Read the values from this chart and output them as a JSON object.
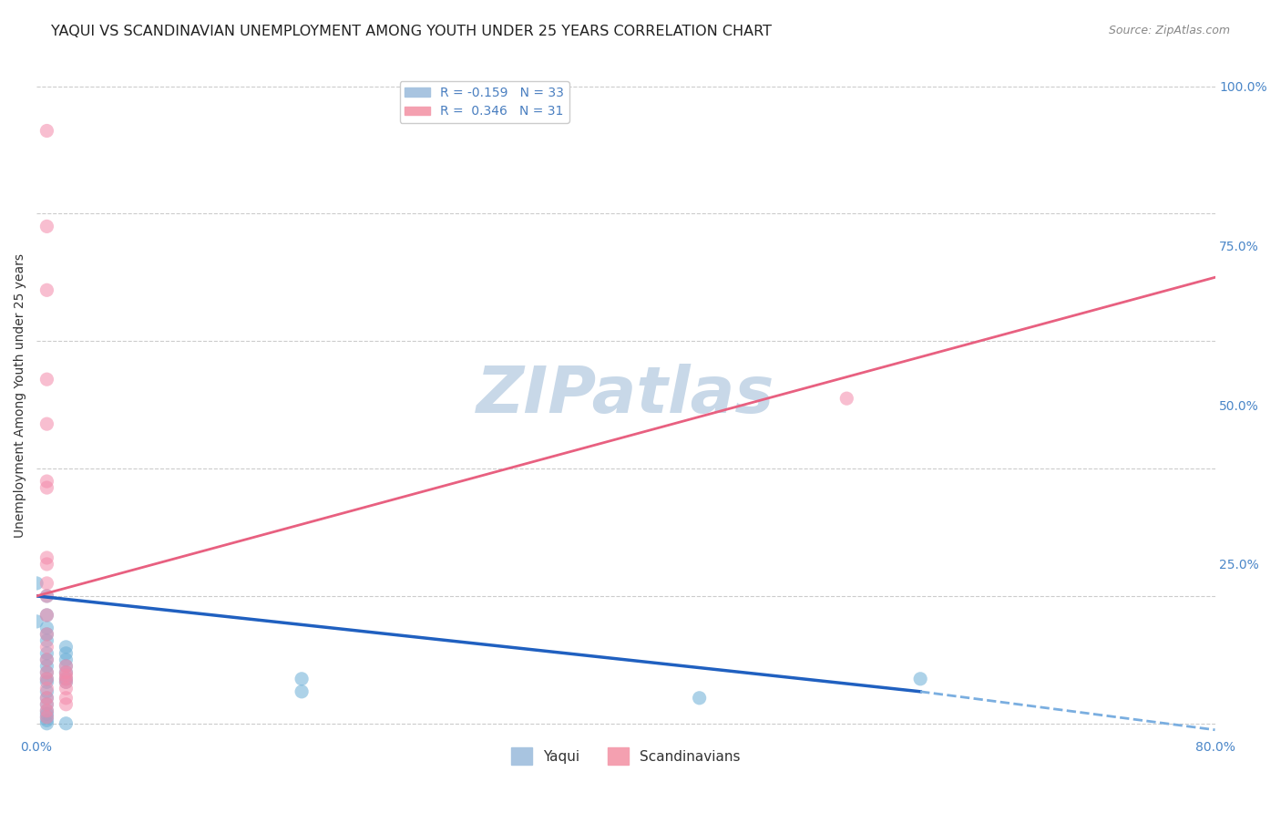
{
  "title": "YAQUI VS SCANDINAVIAN UNEMPLOYMENT AMONG YOUTH UNDER 25 YEARS CORRELATION CHART",
  "source": "Source: ZipAtlas.com",
  "ylabel": "Unemployment Among Youth under 25 years",
  "xlabel": "",
  "watermark": "ZIPatlas",
  "xlim": [
    0.0,
    0.8
  ],
  "ylim": [
    -0.02,
    1.05
  ],
  "xticks": [
    0.0,
    0.1,
    0.2,
    0.3,
    0.4,
    0.5,
    0.6,
    0.7,
    0.8
  ],
  "xticklabels": [
    "0.0%",
    "",
    "",
    "",
    "",
    "",
    "",
    "",
    "80.0%"
  ],
  "yticks": [
    0.0,
    0.25,
    0.5,
    0.75,
    1.0
  ],
  "yticklabels_right": [
    "",
    "25.0%",
    "50.0%",
    "75.0%",
    "100.0%"
  ],
  "yaqui_color": "#6aaed6",
  "scandinavian_color": "#f48aaa",
  "yaqui_scatter": [
    [
      0.0,
      0.22
    ],
    [
      0.0,
      0.16
    ],
    [
      0.007,
      0.2
    ],
    [
      0.007,
      0.17
    ],
    [
      0.007,
      0.15
    ],
    [
      0.007,
      0.14
    ],
    [
      0.007,
      0.13
    ],
    [
      0.007,
      0.11
    ],
    [
      0.007,
      0.1
    ],
    [
      0.007,
      0.09
    ],
    [
      0.007,
      0.08
    ],
    [
      0.007,
      0.07
    ],
    [
      0.007,
      0.065
    ],
    [
      0.007,
      0.05
    ],
    [
      0.007,
      0.04
    ],
    [
      0.007,
      0.03
    ],
    [
      0.007,
      0.02
    ],
    [
      0.007,
      0.015
    ],
    [
      0.007,
      0.01
    ],
    [
      0.007,
      0.005
    ],
    [
      0.007,
      0.0
    ],
    [
      0.02,
      0.12
    ],
    [
      0.02,
      0.11
    ],
    [
      0.02,
      0.1
    ],
    [
      0.02,
      0.09
    ],
    [
      0.02,
      0.08
    ],
    [
      0.02,
      0.07
    ],
    [
      0.02,
      0.065
    ],
    [
      0.02,
      0.0
    ],
    [
      0.18,
      0.07
    ],
    [
      0.18,
      0.05
    ],
    [
      0.45,
      0.04
    ],
    [
      0.6,
      0.07
    ]
  ],
  "scandinavian_scatter": [
    [
      0.007,
      0.93
    ],
    [
      0.007,
      0.78
    ],
    [
      0.007,
      0.68
    ],
    [
      0.007,
      0.54
    ],
    [
      0.007,
      0.47
    ],
    [
      0.007,
      0.38
    ],
    [
      0.007,
      0.37
    ],
    [
      0.007,
      0.26
    ],
    [
      0.007,
      0.25
    ],
    [
      0.007,
      0.22
    ],
    [
      0.007,
      0.2
    ],
    [
      0.007,
      0.17
    ],
    [
      0.007,
      0.14
    ],
    [
      0.007,
      0.12
    ],
    [
      0.007,
      0.1
    ],
    [
      0.007,
      0.08
    ],
    [
      0.007,
      0.07
    ],
    [
      0.007,
      0.055
    ],
    [
      0.007,
      0.04
    ],
    [
      0.007,
      0.03
    ],
    [
      0.007,
      0.02
    ],
    [
      0.007,
      0.01
    ],
    [
      0.02,
      0.09
    ],
    [
      0.02,
      0.08
    ],
    [
      0.02,
      0.075
    ],
    [
      0.02,
      0.07
    ],
    [
      0.02,
      0.065
    ],
    [
      0.02,
      0.055
    ],
    [
      0.02,
      0.04
    ],
    [
      0.02,
      0.03
    ],
    [
      0.55,
      0.51
    ]
  ],
  "yaqui_trend": {
    "x_start": 0.0,
    "y_start": 0.2,
    "x_end": 0.6,
    "y_end": 0.05
  },
  "yaqui_trend_ext": {
    "x_start": 0.6,
    "y_start": 0.05,
    "x_end": 0.8,
    "y_end": -0.01
  },
  "scand_trend": {
    "x_start": 0.0,
    "y_start": 0.2,
    "x_end": 0.8,
    "y_end": 0.7
  },
  "background_color": "#ffffff",
  "grid_color": "#cccccc",
  "title_color": "#222222",
  "watermark_color": "#c8d8e8",
  "watermark_fontsize": 52,
  "title_fontsize": 11.5,
  "source_fontsize": 9,
  "ylabel_fontsize": 10,
  "tick_fontsize": 10,
  "legend_fontsize": 10,
  "scatter_size": 120,
  "scatter_alpha": 0.55
}
